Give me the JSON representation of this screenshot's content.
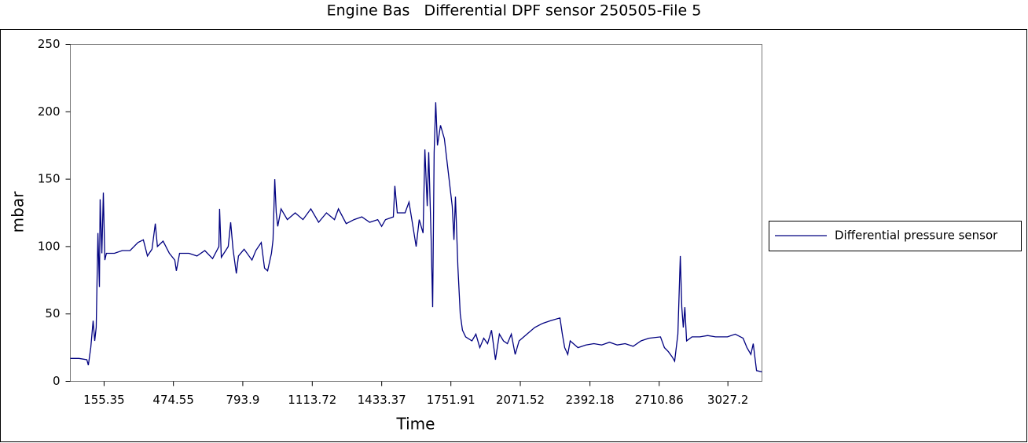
{
  "chart_data": {
    "type": "line",
    "title": "Engine Bas   Differential DPF sensor 250505-File 5",
    "x_label": "Time",
    "y_label": "mbar",
    "xlim": [
      0,
      3184
    ],
    "ylim": [
      0,
      250
    ],
    "xticks": [
      155.35,
      474.55,
      793.9,
      1113.72,
      1433.37,
      1751.91,
      2071.52,
      2392.18,
      2710.86,
      3027.2
    ],
    "yticks": [
      0,
      50,
      100,
      150,
      200,
      250
    ],
    "grid": false,
    "legend": "right",
    "x": [
      0,
      40,
      76,
      83,
      94,
      105,
      112,
      119,
      127,
      134,
      137,
      145,
      152,
      159,
      166,
      203,
      239,
      275,
      311,
      336,
      355,
      376,
      391,
      401,
      427,
      456,
      481,
      488,
      503,
      546,
      583,
      619,
      655,
      684,
      687,
      695,
      727,
      738,
      749,
      764,
      774,
      800,
      836,
      854,
      879,
      894,
      908,
      926,
      933,
      941,
      948,
      955,
      970,
      999,
      1035,
      1071,
      1107,
      1143,
      1179,
      1216,
      1234,
      1270,
      1306,
      1342,
      1378,
      1415,
      1433,
      1451,
      1487,
      1494,
      1505,
      1541,
      1559,
      1577,
      1592,
      1606,
      1624,
      1632,
      1643,
      1650,
      1661,
      1668,
      1675,
      1682,
      1690,
      1704,
      1722,
      1740,
      1758,
      1766,
      1773,
      1784,
      1795,
      1805,
      1820,
      1849,
      1867,
      1885,
      1903,
      1921,
      1939,
      1957,
      1975,
      1994,
      2012,
      2030,
      2048,
      2066,
      2102,
      2138,
      2174,
      2211,
      2254,
      2265,
      2276,
      2290,
      2301,
      2337,
      2373,
      2410,
      2446,
      2482,
      2518,
      2554,
      2591,
      2627,
      2663,
      2717,
      2735,
      2753,
      2771,
      2782,
      2797,
      2808,
      2815,
      2822,
      2829,
      2837,
      2862,
      2898,
      2934,
      2970,
      3025,
      3061,
      3097,
      3115,
      3133,
      3144,
      3159,
      3184
    ],
    "series": [
      {
        "name": "Differential pressure sensor",
        "color": "#000080",
        "values": [
          17,
          17,
          16,
          12,
          25,
          45,
          30,
          40,
          110,
          70,
          135,
          95,
          140,
          90,
          95,
          95,
          97,
          97,
          103,
          105,
          93,
          98,
          117,
          100,
          104,
          95,
          90,
          82,
          95,
          95,
          93,
          97,
          91,
          100,
          128,
          92,
          100,
          118,
          98,
          80,
          93,
          98,
          90,
          97,
          103,
          84,
          82,
          95,
          105,
          150,
          125,
          115,
          128,
          120,
          125,
          120,
          128,
          118,
          125,
          120,
          128,
          117,
          120,
          122,
          118,
          120,
          115,
          120,
          122,
          145,
          125,
          125,
          133,
          115,
          100,
          120,
          110,
          172,
          130,
          170,
          105,
          55,
          170,
          207,
          175,
          190,
          180,
          155,
          130,
          105,
          137,
          85,
          50,
          38,
          33,
          30,
          35,
          25,
          32,
          28,
          38,
          16,
          35,
          30,
          28,
          35,
          20,
          30,
          35,
          40,
          43,
          45,
          47,
          35,
          25,
          20,
          30,
          25,
          27,
          28,
          27,
          29,
          27,
          28,
          26,
          30,
          32,
          33,
          25,
          22,
          18,
          15,
          35,
          93,
          55,
          40,
          55,
          30,
          33,
          33,
          34,
          33,
          33,
          35,
          32,
          25,
          20,
          28,
          8,
          7
        ]
      }
    ]
  }
}
